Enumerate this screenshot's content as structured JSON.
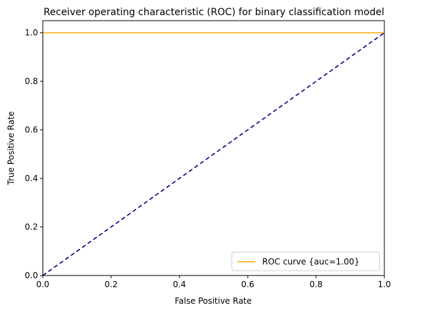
{
  "chart_data": {
    "type": "line",
    "title": "Receiver operating characteristic (ROC) for binary classification model",
    "xlabel": "False Positive Rate",
    "ylabel": "True Positive Rate",
    "xlim": [
      0.0,
      1.0
    ],
    "ylim": [
      0.0,
      1.05
    ],
    "xticks": [
      0.0,
      0.2,
      0.4,
      0.6,
      0.8,
      1.0
    ],
    "yticks": [
      0.0,
      0.2,
      0.4,
      0.6,
      0.8,
      1.0
    ],
    "xtick_labels": [
      "0.0",
      "0.2",
      "0.4",
      "0.6",
      "0.8",
      "1.0"
    ],
    "ytick_labels": [
      "0.0",
      "0.2",
      "0.4",
      "0.6",
      "0.8",
      "1.0"
    ],
    "grid": false,
    "legend_position": "bottom-right",
    "series": [
      {
        "name": "ROC curve {auc=1.00}",
        "color": "#FFA500",
        "style": "solid",
        "x": [
          0.0,
          0.0,
          1.0
        ],
        "y": [
          0.0,
          1.0,
          1.0
        ]
      },
      {
        "color": "#000080",
        "style": "dashed",
        "x": [
          0.0,
          1.0
        ],
        "y": [
          0.0,
          1.0
        ]
      }
    ]
  }
}
